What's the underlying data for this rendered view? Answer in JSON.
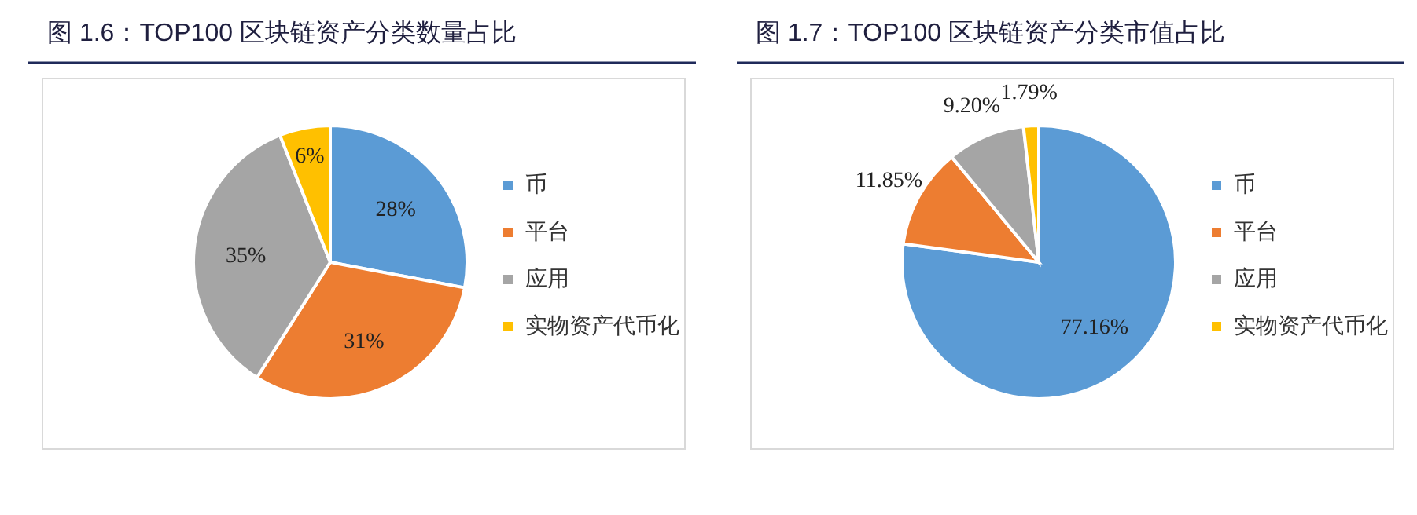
{
  "chart_data": [
    {
      "type": "pie",
      "title": "图 1.6：TOP100 区块链资产分类数量占比",
      "categories": [
        "币",
        "平台",
        "应用",
        "实物资产代币化"
      ],
      "values": [
        28,
        31,
        35,
        6
      ],
      "colors": [
        "#5b9bd5",
        "#ed7d31",
        "#a5a5a5",
        "#ffc000"
      ],
      "value_labels": [
        "28%",
        "31%",
        "35%",
        "6%"
      ],
      "legend": "right"
    },
    {
      "type": "pie",
      "title": "图 1.7：TOP100 区块链资产分类市值占比",
      "categories": [
        "币",
        "平台",
        "应用",
        "实物资产代币化"
      ],
      "values": [
        77.16,
        11.85,
        9.2,
        1.79
      ],
      "colors": [
        "#5b9bd5",
        "#ed7d31",
        "#a5a5a5",
        "#ffc000"
      ],
      "value_labels": [
        "77.16%",
        "11.85%",
        "9.20%",
        "1.79%"
      ],
      "legend": "right"
    }
  ]
}
